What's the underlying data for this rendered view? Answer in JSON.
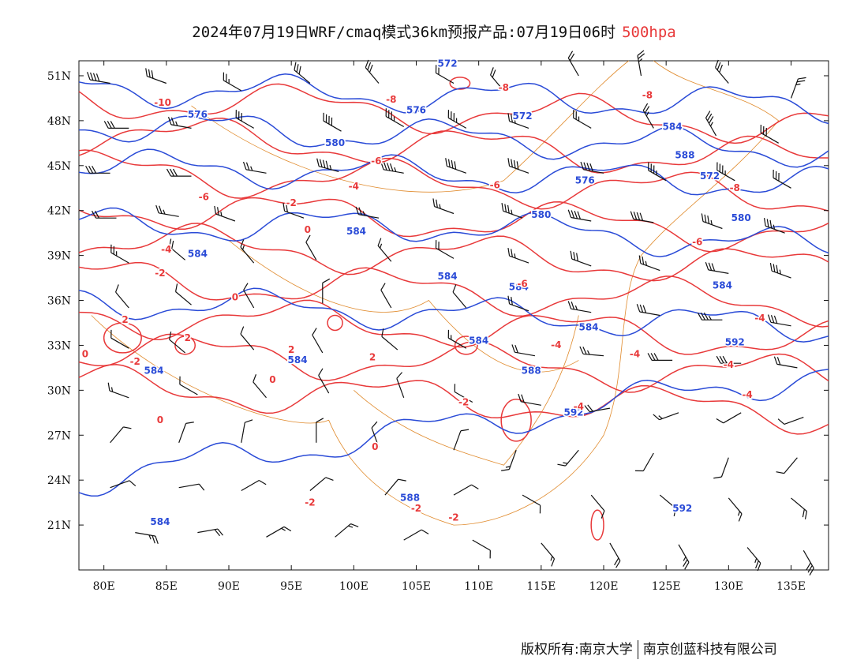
{
  "title": {
    "main": "2024年07月19日WRF/cmaq模式36km预报产品:07月19日06时",
    "level": "500hpa"
  },
  "footer": {
    "copyright": "版权所有:南京大学",
    "company": "南京创蓝科技有限公司"
  },
  "axes": {
    "lon_labels": [
      "80E",
      "85E",
      "90E",
      "95E",
      "100E",
      "105E",
      "110E",
      "115E",
      "120E",
      "125E",
      "130E",
      "135E"
    ],
    "lat_labels": [
      "51N",
      "48N",
      "45N",
      "42N",
      "39N",
      "36N",
      "33N",
      "30N",
      "27N",
      "24N",
      "21N"
    ],
    "lon_range": [
      78,
      138
    ],
    "lat_range": [
      18,
      52
    ]
  },
  "colors": {
    "height": "#2a4bd7",
    "temperature": "#e8393a",
    "border": "#e08a2c",
    "wind": "#111111"
  },
  "chart_data": {
    "type": "contour_map",
    "height_contours_dagpm": [
      572,
      576,
      580,
      584,
      588,
      592
    ],
    "temperature_contours_c": [
      -10,
      -8,
      -6,
      -4,
      -2,
      0,
      2
    ]
  },
  "height_labels": [
    {
      "text": "572",
      "lon": 107.5,
      "lat": 51.6
    },
    {
      "text": "576",
      "lon": 87.5,
      "lat": 48.2
    },
    {
      "text": "576",
      "lon": 105.0,
      "lat": 48.5
    },
    {
      "text": "572",
      "lon": 113.5,
      "lat": 48.1
    },
    {
      "text": "584",
      "lon": 125.5,
      "lat": 47.4
    },
    {
      "text": "580",
      "lon": 98.5,
      "lat": 46.3
    },
    {
      "text": "588",
      "lon": 126.5,
      "lat": 45.5
    },
    {
      "text": "572",
      "lon": 128.5,
      "lat": 44.1
    },
    {
      "text": "576",
      "lon": 118.5,
      "lat": 43.8
    },
    {
      "text": "580",
      "lon": 115.0,
      "lat": 41.5
    },
    {
      "text": "580",
      "lon": 131.0,
      "lat": 41.3
    },
    {
      "text": "584",
      "lon": 87.5,
      "lat": 38.9
    },
    {
      "text": "584",
      "lon": 100.2,
      "lat": 40.4
    },
    {
      "text": "584",
      "lon": 107.5,
      "lat": 37.4
    },
    {
      "text": "584",
      "lon": 113.2,
      "lat": 36.7
    },
    {
      "text": "584",
      "lon": 129.5,
      "lat": 36.8
    },
    {
      "text": "584",
      "lon": 118.8,
      "lat": 34.0
    },
    {
      "text": "584",
      "lon": 110.0,
      "lat": 33.1
    },
    {
      "text": "584",
      "lon": 84.0,
      "lat": 31.1
    },
    {
      "text": "584",
      "lon": 95.5,
      "lat": 31.8
    },
    {
      "text": "588",
      "lon": 114.2,
      "lat": 31.1
    },
    {
      "text": "592",
      "lon": 130.5,
      "lat": 33.0
    },
    {
      "text": "592",
      "lon": 117.6,
      "lat": 28.3
    },
    {
      "text": "588",
      "lon": 104.5,
      "lat": 22.6
    },
    {
      "text": "592",
      "lon": 126.3,
      "lat": 21.9
    },
    {
      "text": "584",
      "lon": 84.5,
      "lat": 21.0
    }
  ],
  "temp_labels": [
    {
      "text": "-10",
      "lon": 84.7,
      "lat": 49.0
    },
    {
      "text": "-8",
      "lon": 103.0,
      "lat": 49.2
    },
    {
      "text": "-8",
      "lon": 112.0,
      "lat": 50.0
    },
    {
      "text": "-8",
      "lon": 123.5,
      "lat": 49.5
    },
    {
      "text": "-6",
      "lon": 101.8,
      "lat": 45.1
    },
    {
      "text": "-6",
      "lon": 111.3,
      "lat": 43.5
    },
    {
      "text": "-6",
      "lon": 88.0,
      "lat": 42.7
    },
    {
      "text": "-4",
      "lon": 100.0,
      "lat": 43.4
    },
    {
      "text": "-2",
      "lon": 95.0,
      "lat": 42.3
    },
    {
      "text": "0",
      "lon": 96.3,
      "lat": 40.5
    },
    {
      "text": "-4",
      "lon": 85.0,
      "lat": 39.2
    },
    {
      "text": "-2",
      "lon": 84.5,
      "lat": 37.6
    },
    {
      "text": "-6",
      "lon": 113.5,
      "lat": 36.9
    },
    {
      "text": "-8",
      "lon": 130.5,
      "lat": 43.3
    },
    {
      "text": "-6",
      "lon": 127.5,
      "lat": 39.7
    },
    {
      "text": "0",
      "lon": 90.5,
      "lat": 36.0
    },
    {
      "text": "2",
      "lon": 81.7,
      "lat": 34.5
    },
    {
      "text": "2",
      "lon": 86.7,
      "lat": 33.3
    },
    {
      "text": "2",
      "lon": 95.0,
      "lat": 32.5
    },
    {
      "text": "2",
      "lon": 101.5,
      "lat": 32.0
    },
    {
      "text": "0",
      "lon": 78.5,
      "lat": 32.2
    },
    {
      "text": "-2",
      "lon": 82.5,
      "lat": 31.7
    },
    {
      "text": "0",
      "lon": 93.5,
      "lat": 30.5
    },
    {
      "text": "0",
      "lon": 84.5,
      "lat": 27.8
    },
    {
      "text": "0",
      "lon": 101.7,
      "lat": 26.0
    },
    {
      "text": "-4",
      "lon": 116.2,
      "lat": 32.8
    },
    {
      "text": "-4",
      "lon": 122.5,
      "lat": 32.2
    },
    {
      "text": "-4",
      "lon": 132.5,
      "lat": 34.6
    },
    {
      "text": "-4",
      "lon": 130.0,
      "lat": 31.5
    },
    {
      "text": "-4",
      "lon": 131.5,
      "lat": 29.5
    },
    {
      "text": "-2",
      "lon": 108.8,
      "lat": 29.0
    },
    {
      "text": "-4",
      "lon": 118.0,
      "lat": 28.7
    },
    {
      "text": "-2",
      "lon": 96.5,
      "lat": 22.3
    },
    {
      "text": "-2",
      "lon": 105.0,
      "lat": 21.9
    },
    {
      "text": "-2",
      "lon": 108.0,
      "lat": 21.3
    }
  ],
  "barbs": [
    {
      "lon": 80.5,
      "lat": 50.5,
      "dir": 280,
      "kt": 40
    },
    {
      "lon": 85,
      "lat": 50.5,
      "dir": 290,
      "kt": 30
    },
    {
      "lon": 91,
      "lat": 50,
      "dir": 300,
      "kt": 25
    },
    {
      "lon": 96.5,
      "lat": 50.5,
      "dir": 310,
      "kt": 30
    },
    {
      "lon": 102,
      "lat": 50.5,
      "dir": 320,
      "kt": 30
    },
    {
      "lon": 108,
      "lat": 50.5,
      "dir": 300,
      "kt": 20
    },
    {
      "lon": 112,
      "lat": 50,
      "dir": 320,
      "kt": 20
    },
    {
      "lon": 118,
      "lat": 51,
      "dir": 330,
      "kt": 20
    },
    {
      "lon": 123,
      "lat": 51,
      "dir": 350,
      "kt": 25
    },
    {
      "lon": 130,
      "lat": 50.5,
      "dir": 320,
      "kt": 30
    },
    {
      "lon": 135,
      "lat": 49.5,
      "dir": 20,
      "kt": 25
    },
    {
      "lon": 82,
      "lat": 47.5,
      "dir": 270,
      "kt": 30
    },
    {
      "lon": 87,
      "lat": 47.5,
      "dir": 280,
      "kt": 25
    },
    {
      "lon": 92,
      "lat": 47.5,
      "dir": 300,
      "kt": 30
    },
    {
      "lon": 99,
      "lat": 47.3,
      "dir": 300,
      "kt": 40
    },
    {
      "lon": 104,
      "lat": 47.6,
      "dir": 300,
      "kt": 35
    },
    {
      "lon": 109,
      "lat": 47.5,
      "dir": 300,
      "kt": 35
    },
    {
      "lon": 114,
      "lat": 47.5,
      "dir": 290,
      "kt": 30
    },
    {
      "lon": 119,
      "lat": 47.5,
      "dir": 300,
      "kt": 25
    },
    {
      "lon": 124,
      "lat": 47.5,
      "dir": 330,
      "kt": 25
    },
    {
      "lon": 129,
      "lat": 47,
      "dir": 330,
      "kt": 35
    },
    {
      "lon": 134,
      "lat": 46.5,
      "dir": 300,
      "kt": 30
    },
    {
      "lon": 80.5,
      "lat": 44.5,
      "dir": 270,
      "kt": 30
    },
    {
      "lon": 87,
      "lat": 44.3,
      "dir": 270,
      "kt": 30
    },
    {
      "lon": 93,
      "lat": 44.5,
      "dir": 280,
      "kt": 25
    },
    {
      "lon": 98.8,
      "lat": 44.6,
      "dir": 285,
      "kt": 45
    },
    {
      "lon": 104,
      "lat": 44.5,
      "dir": 280,
      "kt": 45
    },
    {
      "lon": 109,
      "lat": 44.5,
      "dir": 290,
      "kt": 40
    },
    {
      "lon": 114,
      "lat": 44.5,
      "dir": 290,
      "kt": 40
    },
    {
      "lon": 120,
      "lat": 44.5,
      "dir": 280,
      "kt": 40
    },
    {
      "lon": 125,
      "lat": 44,
      "dir": 300,
      "kt": 35
    },
    {
      "lon": 130.5,
      "lat": 44,
      "dir": 300,
      "kt": 35
    },
    {
      "lon": 135,
      "lat": 43.5,
      "dir": 300,
      "kt": 30
    },
    {
      "lon": 81,
      "lat": 41.5,
      "dir": 270,
      "kt": 20
    },
    {
      "lon": 86,
      "lat": 41.6,
      "dir": 280,
      "kt": 25
    },
    {
      "lon": 90.5,
      "lat": 41.3,
      "dir": 290,
      "kt": 25
    },
    {
      "lon": 96,
      "lat": 41.5,
      "dir": 290,
      "kt": 20
    },
    {
      "lon": 102,
      "lat": 41.5,
      "dir": 280,
      "kt": 25
    },
    {
      "lon": 108,
      "lat": 41.8,
      "dir": 290,
      "kt": 25
    },
    {
      "lon": 113.5,
      "lat": 41.5,
      "dir": 290,
      "kt": 35
    },
    {
      "lon": 119,
      "lat": 41.3,
      "dir": 280,
      "kt": 40
    },
    {
      "lon": 124,
      "lat": 41.2,
      "dir": 280,
      "kt": 40
    },
    {
      "lon": 129.5,
      "lat": 40.8,
      "dir": 290,
      "kt": 35
    },
    {
      "lon": 134.5,
      "lat": 40.5,
      "dir": 290,
      "kt": 35
    },
    {
      "lon": 82,
      "lat": 38.5,
      "dir": 300,
      "kt": 25
    },
    {
      "lon": 86.5,
      "lat": 38.7,
      "dir": 310,
      "kt": 20
    },
    {
      "lon": 92,
      "lat": 38.5,
      "dir": 320,
      "kt": 15
    },
    {
      "lon": 97,
      "lat": 38.7,
      "dir": 330,
      "kt": 10
    },
    {
      "lon": 103,
      "lat": 38.6,
      "dir": 320,
      "kt": 15
    },
    {
      "lon": 108,
      "lat": 38.8,
      "dir": 300,
      "kt": 20
    },
    {
      "lon": 114,
      "lat": 38.5,
      "dir": 290,
      "kt": 25
    },
    {
      "lon": 119,
      "lat": 38.3,
      "dir": 290,
      "kt": 30
    },
    {
      "lon": 124.5,
      "lat": 38,
      "dir": 290,
      "kt": 25
    },
    {
      "lon": 130,
      "lat": 37.8,
      "dir": 280,
      "kt": 30
    },
    {
      "lon": 135,
      "lat": 37.5,
      "dir": 290,
      "kt": 35
    },
    {
      "lon": 82,
      "lat": 35.5,
      "dir": 320,
      "kt": 10
    },
    {
      "lon": 87,
      "lat": 35.7,
      "dir": 310,
      "kt": 10
    },
    {
      "lon": 92,
      "lat": 35.5,
      "dir": 330,
      "kt": 10
    },
    {
      "lon": 97.5,
      "lat": 35.8,
      "dir": 0,
      "kt": 10
    },
    {
      "lon": 103,
      "lat": 35.5,
      "dir": 330,
      "kt": 10
    },
    {
      "lon": 109,
      "lat": 35.5,
      "dir": 320,
      "kt": 10
    },
    {
      "lon": 114,
      "lat": 35.3,
      "dir": 290,
      "kt": 20
    },
    {
      "lon": 119,
      "lat": 35.2,
      "dir": 280,
      "kt": 25
    },
    {
      "lon": 124.5,
      "lat": 35,
      "dir": 280,
      "kt": 30
    },
    {
      "lon": 129.5,
      "lat": 34.7,
      "dir": 270,
      "kt": 35
    },
    {
      "lon": 135,
      "lat": 34.3,
      "dir": 280,
      "kt": 30
    },
    {
      "lon": 82,
      "lat": 32.8,
      "dir": 300,
      "kt": 10
    },
    {
      "lon": 86.5,
      "lat": 32.5,
      "dir": 310,
      "kt": 10
    },
    {
      "lon": 92,
      "lat": 32.7,
      "dir": 320,
      "kt": 10
    },
    {
      "lon": 97.5,
      "lat": 32.5,
      "dir": 330,
      "kt": 10
    },
    {
      "lon": 103.5,
      "lat": 32.7,
      "dir": 310,
      "kt": 10
    },
    {
      "lon": 109,
      "lat": 32.8,
      "dir": 300,
      "kt": 15
    },
    {
      "lon": 114.5,
      "lat": 32.3,
      "dir": 280,
      "kt": 20
    },
    {
      "lon": 120,
      "lat": 32.3,
      "dir": 275,
      "kt": 25
    },
    {
      "lon": 125.5,
      "lat": 32,
      "dir": 270,
      "kt": 30
    },
    {
      "lon": 131,
      "lat": 31.8,
      "dir": 270,
      "kt": 30
    },
    {
      "lon": 135.5,
      "lat": 31.5,
      "dir": 280,
      "kt": 20
    },
    {
      "lon": 82,
      "lat": 29.5,
      "dir": 290,
      "kt": 15
    },
    {
      "lon": 87.5,
      "lat": 29.7,
      "dir": 300,
      "kt": 10
    },
    {
      "lon": 93,
      "lat": 29.5,
      "dir": 320,
      "kt": 10
    },
    {
      "lon": 98,
      "lat": 29.8,
      "dir": 330,
      "kt": 10
    },
    {
      "lon": 104,
      "lat": 29.5,
      "dir": 340,
      "kt": 10
    },
    {
      "lon": 109.5,
      "lat": 29.2,
      "dir": 300,
      "kt": 10
    },
    {
      "lon": 115,
      "lat": 29,
      "dir": 280,
      "kt": 20
    },
    {
      "lon": 120.5,
      "lat": 28.8,
      "dir": 260,
      "kt": 20
    },
    {
      "lon": 126,
      "lat": 28.5,
      "dir": 250,
      "kt": 15
    },
    {
      "lon": 131,
      "lat": 28.5,
      "dir": 240,
      "kt": 10
    },
    {
      "lon": 136,
      "lat": 28.2,
      "dir": 250,
      "kt": 10
    },
    {
      "lon": 80.5,
      "lat": 26.5,
      "dir": 40,
      "kt": 10
    },
    {
      "lon": 86,
      "lat": 26.5,
      "dir": 20,
      "kt": 10
    },
    {
      "lon": 91,
      "lat": 26.5,
      "dir": 10,
      "kt": 10
    },
    {
      "lon": 97,
      "lat": 26.5,
      "dir": 0,
      "kt": 10
    },
    {
      "lon": 102,
      "lat": 26.2,
      "dir": 340,
      "kt": 10
    },
    {
      "lon": 108,
      "lat": 26,
      "dir": 20,
      "kt": 10
    },
    {
      "lon": 113,
      "lat": 26,
      "dir": 200,
      "kt": 15
    },
    {
      "lon": 118,
      "lat": 26,
      "dir": 220,
      "kt": 15
    },
    {
      "lon": 124,
      "lat": 25.8,
      "dir": 210,
      "kt": 10
    },
    {
      "lon": 130,
      "lat": 25.5,
      "dir": 200,
      "kt": 10
    },
    {
      "lon": 135.5,
      "lat": 25.5,
      "dir": 220,
      "kt": 10
    },
    {
      "lon": 80.5,
      "lat": 23.5,
      "dir": 70,
      "kt": 10
    },
    {
      "lon": 86,
      "lat": 23.5,
      "dir": 80,
      "kt": 10
    },
    {
      "lon": 91,
      "lat": 23.3,
      "dir": 60,
      "kt": 10
    },
    {
      "lon": 96.5,
      "lat": 23.3,
      "dir": 50,
      "kt": 10
    },
    {
      "lon": 102.5,
      "lat": 23,
      "dir": 40,
      "kt": 10
    },
    {
      "lon": 108,
      "lat": 23,
      "dir": 60,
      "kt": 10
    },
    {
      "lon": 113.5,
      "lat": 23,
      "dir": 120,
      "kt": 10
    },
    {
      "lon": 119,
      "lat": 23,
      "dir": 140,
      "kt": 10
    },
    {
      "lon": 124.5,
      "lat": 23,
      "dir": 130,
      "kt": 10
    },
    {
      "lon": 130,
      "lat": 22.8,
      "dir": 140,
      "kt": 15
    },
    {
      "lon": 135,
      "lat": 22.8,
      "dir": 130,
      "kt": 20
    },
    {
      "lon": 82.5,
      "lat": 20.5,
      "dir": 100,
      "kt": 25
    },
    {
      "lon": 87.5,
      "lat": 20.5,
      "dir": 80,
      "kt": 20
    },
    {
      "lon": 93,
      "lat": 20.2,
      "dir": 60,
      "kt": 15
    },
    {
      "lon": 98.5,
      "lat": 20.2,
      "dir": 50,
      "kt": 15
    },
    {
      "lon": 104,
      "lat": 20,
      "dir": 60,
      "kt": 10
    },
    {
      "lon": 109.5,
      "lat": 20,
      "dir": 120,
      "kt": 10
    },
    {
      "lon": 115,
      "lat": 19.8,
      "dir": 140,
      "kt": 15
    },
    {
      "lon": 120.5,
      "lat": 19.8,
      "dir": 150,
      "kt": 20
    },
    {
      "lon": 126,
      "lat": 19.7,
      "dir": 150,
      "kt": 25
    },
    {
      "lon": 131.5,
      "lat": 19.5,
      "dir": 140,
      "kt": 25
    },
    {
      "lon": 136,
      "lat": 19.3,
      "dir": 150,
      "kt": 30
    }
  ]
}
